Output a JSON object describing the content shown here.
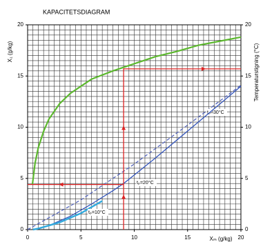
{
  "chart_data": {
    "type": "line",
    "title": "KAPACITETSDIAGRAM",
    "x_label": "Xₘ (g/kg)",
    "y_label": "X₁ (g/kg)",
    "y2_label": "Temperaturstigning (°C)",
    "xlim": [
      0,
      20
    ],
    "xticks": [
      0,
      5,
      10,
      15,
      20
    ],
    "ylim": [
      0,
      20
    ],
    "yticks": [
      0,
      5,
      10,
      15,
      20
    ],
    "y2lim": [
      0,
      20
    ],
    "y2ticks": [
      0,
      5,
      10,
      15,
      20
    ],
    "grid": true,
    "grid_step": 0.5,
    "series": [
      {
        "color": "#5cb82e",
        "x": [
          0.45,
          0.7,
          1,
          1.5,
          2,
          3,
          4,
          5,
          6,
          8,
          10,
          12,
          14,
          16,
          18,
          20
        ],
        "values": [
          4.4,
          6.5,
          8,
          9.6,
          10.8,
          12.3,
          13.3,
          14,
          14.7,
          15.5,
          16.2,
          16.9,
          17.4,
          18,
          18.4,
          18.8
        ]
      },
      {
        "name": "tₚ=30°C",
        "color": "#5566bb",
        "dash": true,
        "x": [
          0,
          5,
          10,
          15,
          20
        ],
        "values": [
          0,
          2.9,
          6.4,
          10.2,
          14.1
        ]
      },
      {
        "name": "tₚ=20°C",
        "color": "#3355bb",
        "x": [
          0.5,
          2,
          4,
          6,
          8,
          9,
          12,
          16,
          20
        ],
        "values": [
          0,
          0.4,
          1.3,
          2.5,
          3.8,
          4.5,
          7,
          10.5,
          14
        ]
      },
      {
        "name": "tₚ=10°C",
        "color": "#33aadd",
        "x": [
          0.5,
          1,
          3,
          5,
          7
        ],
        "values": [
          0,
          0.1,
          0.7,
          1.6,
          2.8
        ]
      },
      {
        "color": "#dd2222",
        "x": [
          9,
          9,
          20
        ],
        "values": [
          0,
          15.7,
          15.7
        ]
      },
      {
        "color": "#dd2222",
        "x": [
          9,
          0
        ],
        "values": [
          4.4,
          4.4
        ]
      }
    ]
  }
}
